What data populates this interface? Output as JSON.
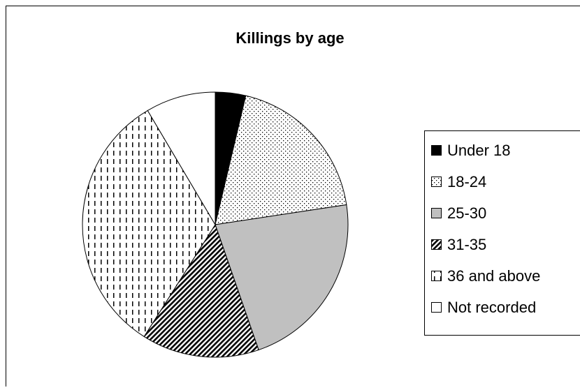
{
  "chart_data": {
    "type": "pie",
    "title": "Killings by age",
    "categories": [
      "Under 18",
      "18-24",
      "25-30",
      "31-35",
      "36 and above",
      "Not recorded"
    ],
    "values": [
      3.7,
      18.9,
      22.1,
      14.3,
      32.5,
      8.5
    ],
    "fills": [
      "solid-black",
      "dots",
      "solid-gray",
      "diagonal-hatch",
      "vertical-dashes",
      "solid-white"
    ],
    "legend": "right"
  }
}
